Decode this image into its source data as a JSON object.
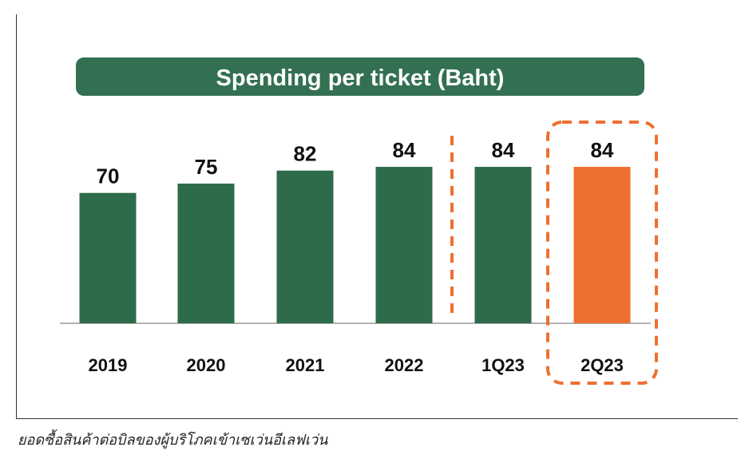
{
  "chart_data": {
    "type": "bar",
    "title": "Spending per ticket (Baht)",
    "categories": [
      "2019",
      "2020",
      "2021",
      "2022",
      "1Q23",
      "2Q23"
    ],
    "values": [
      70,
      75,
      82,
      84,
      84,
      84
    ],
    "data_labels": [
      "70",
      "75",
      "82",
      "84",
      "84",
      "84"
    ],
    "highlight_category": "2Q23",
    "colors": {
      "bar": "#2e6b4a",
      "highlight_bar": "#ed7030",
      "title_banner": "#337052",
      "title_text": "#ffffff",
      "separator": "#ed7030",
      "axis": "#999999",
      "label_text": "#111111"
    },
    "grid": false,
    "legend": "none"
  },
  "caption": "ยอดซื้อสินค้าต่อบิลของผู้บริโภคเข้าเซเว่นอีเลฟเว่น"
}
